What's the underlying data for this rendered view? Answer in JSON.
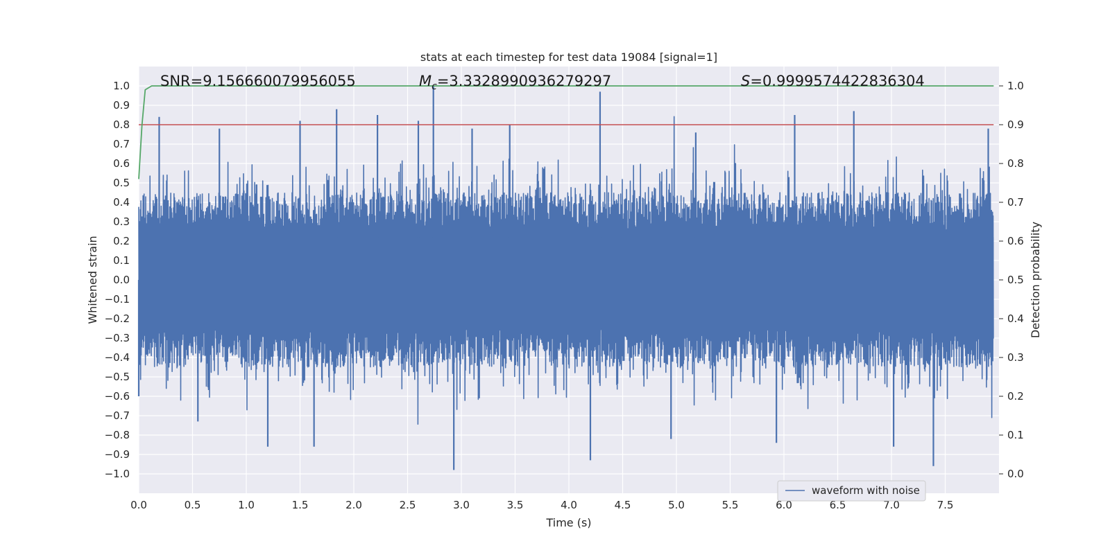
{
  "chart_data": {
    "type": "line",
    "title": "stats at each timestep for test data 19084 [signal=1]",
    "xlabel": "Time (s)",
    "ylabel": "Whitened strain",
    "y2label": "Detection probability",
    "xlim": [
      0.0,
      8.0
    ],
    "ylim": [
      -1.1,
      1.1
    ],
    "y2lim": [
      -0.05,
      1.05
    ],
    "xticks": [
      "0.0",
      "0.5",
      "1.0",
      "1.5",
      "2.0",
      "2.5",
      "3.0",
      "3.5",
      "4.0",
      "4.5",
      "5.0",
      "5.5",
      "6.0",
      "6.5",
      "7.0",
      "7.5"
    ],
    "yticks": [
      "1.0",
      "0.9",
      "0.8",
      "0.7",
      "0.6",
      "0.5",
      "0.4",
      "0.3",
      "0.2",
      "0.1",
      "0.0",
      "−0.1",
      "−0.2",
      "−0.3",
      "−0.4",
      "−0.5",
      "−0.6",
      "−0.7",
      "−0.8",
      "−0.9",
      "−1.0"
    ],
    "y2ticks": [
      "1.0",
      "0.9",
      "0.8",
      "0.7",
      "0.6",
      "0.5",
      "0.4",
      "0.3",
      "0.2",
      "0.1",
      "0.0"
    ],
    "grid": true,
    "legend_position": "lower-right",
    "series": [
      {
        "name": "waveform with noise",
        "axis": "left",
        "color": "#4c72b0",
        "note": "dense noisy whitened strain, roughly within ±0.45 with spikes up to ±1.0",
        "x": [
          0.0,
          0.19,
          0.55,
          0.75,
          1.2,
          1.5,
          1.63,
          1.84,
          2.22,
          2.6,
          2.74,
          2.93,
          3.1,
          3.45,
          4.2,
          4.29,
          4.95,
          5.18,
          5.93,
          6.1,
          6.65,
          7.02,
          7.39,
          7.9
        ],
        "values": [
          -0.6,
          0.84,
          -0.73,
          0.78,
          -0.86,
          0.82,
          -0.86,
          0.88,
          0.85,
          0.82,
          1.0,
          -0.98,
          0.78,
          0.8,
          -0.93,
          0.97,
          -0.82,
          0.76,
          -0.84,
          0.85,
          0.87,
          -0.86,
          -0.96,
          0.78
        ]
      },
      {
        "name": "detection probability",
        "axis": "right",
        "color": "#55a868",
        "x": [
          0.0,
          0.03,
          0.06,
          0.12,
          7.95
        ],
        "values": [
          0.76,
          0.9,
          0.99,
          1.0,
          1.0
        ]
      },
      {
        "name": "threshold",
        "axis": "right",
        "color": "#c44e52",
        "x": [
          0.0,
          7.95
        ],
        "values": [
          0.9,
          0.9
        ]
      }
    ],
    "annotations": {
      "snr": "SNR=9.156660079956055",
      "mc_symbol": "M",
      "mc_sub": "c",
      "mc_value": "=3.3328990936279297",
      "s_symbol": "S",
      "s_value": "=0.9999574422836304"
    },
    "legend": {
      "label": "waveform with noise"
    },
    "colors": {
      "background": "#eaeaf2",
      "grid": "#ffffff",
      "strain": "#4c72b0",
      "prob": "#55a868",
      "threshold": "#c44e52"
    }
  }
}
